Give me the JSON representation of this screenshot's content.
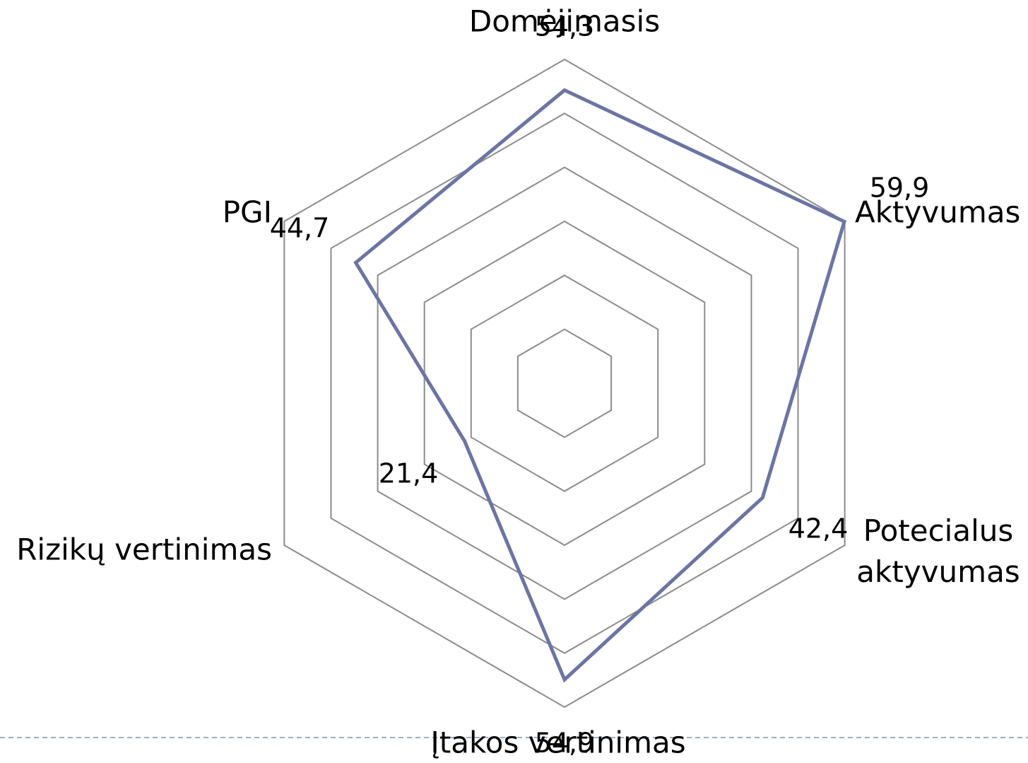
{
  "chart_data": {
    "type": "radar",
    "categories": [
      "Domėjimasis",
      "Aktyvumas",
      "Potecialus aktyvumas",
      "Įtakos vertinimas",
      "Rizikų vertinimas",
      "PGI"
    ],
    "series": [
      {
        "color": "#6b75a3",
        "values": [
          54.3,
          59.9,
          42.4,
          54.9,
          21.4,
          44.7
        ],
        "value_labels": [
          "54,3",
          "59,9",
          "42,4",
          "54,9",
          "21,4",
          "44,7"
        ]
      }
    ],
    "ylim": [
      0,
      60
    ],
    "yticks": [
      0,
      10,
      20,
      30,
      40,
      50,
      60
    ],
    "grid": true
  }
}
